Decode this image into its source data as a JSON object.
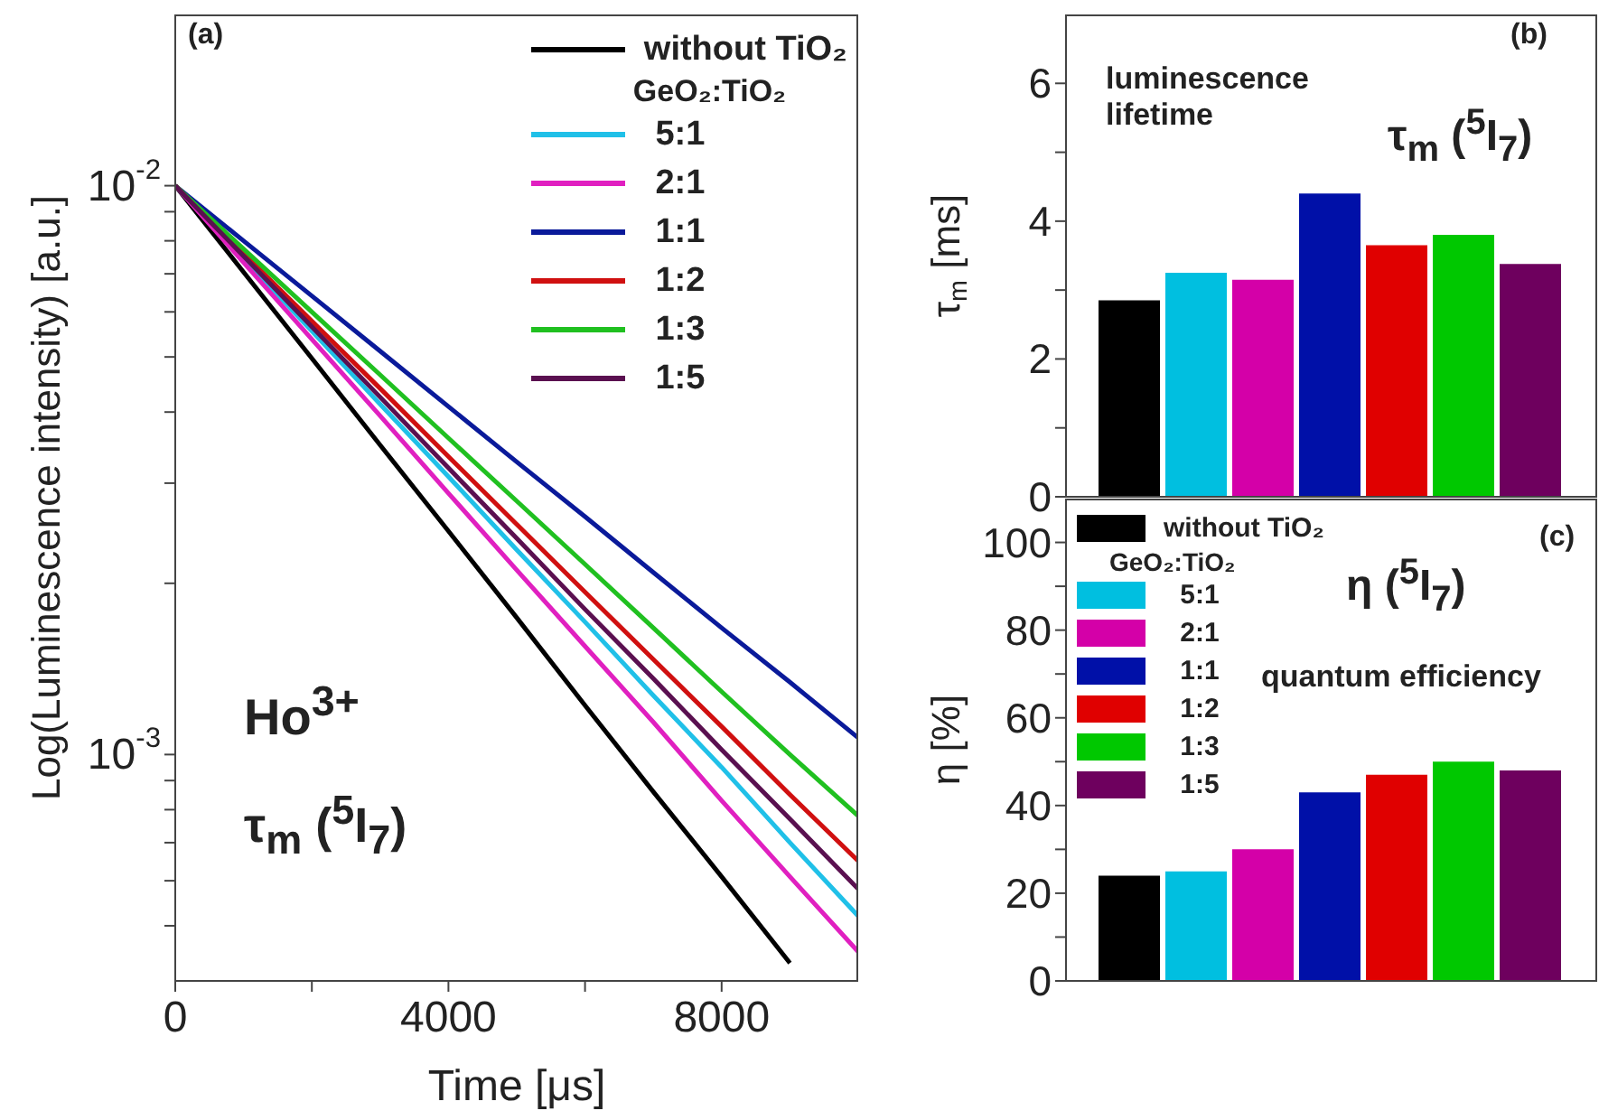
{
  "chart_data": [
    {
      "type": "line",
      "log": "y",
      "xlabel": "Time [μs]",
      "ylabel": "Log(Luminescence intensity) [a.u.]",
      "legend": "top right",
      "legend_title": "GeO₂:TiO₂",
      "annotations": [
        "(a)",
        "Ho$^{3+}$",
        "τ$_{m}$ ($^{5}$I$_{7}$)"
      ],
      "x": [
        0,
        1000,
        2000,
        3000,
        4000,
        5000,
        6000,
        7000,
        8000,
        9000,
        10000
      ],
      "xlim": [
        0,
        10000
      ],
      "xticks": [
        0,
        {
          "value": 2000,
          "label": null
        },
        4000,
        {
          "value": 6000,
          "label": null
        },
        8000
      ],
      "ylim": [
        0.0004,
        0.02
      ],
      "yticks": [
        {
          "value": 0.0005,
          "label": null
        },
        {
          "value": 0.0006,
          "label": null
        },
        {
          "value": 0.0007,
          "label": null
        },
        {
          "value": 0.0008,
          "label": null
        },
        {
          "value": 0.0009,
          "label": null
        },
        {
          "value": 0.001,
          "label": "10$^{-3}$"
        },
        {
          "value": 0.002,
          "label": null
        },
        {
          "value": 0.003,
          "label": null
        },
        {
          "value": 0.004,
          "label": null
        },
        {
          "value": 0.005,
          "label": null
        },
        {
          "value": 0.006,
          "label": null
        },
        {
          "value": 0.007,
          "label": null
        },
        {
          "value": 0.008,
          "label": null
        },
        {
          "value": 0.009,
          "label": null
        },
        {
          "value": 0.01,
          "label": "10$^{-2}$"
        }
      ],
      "series": [
        {
          "name": "without TiO₂",
          "color": "#000000",
          "values": [
            0.01,
            0.00705,
            0.00497,
            0.0035,
            0.00247,
            0.00174,
            0.00122,
            0.00086,
            0.00061,
            0.00043,
            null
          ]
        },
        {
          "name": "5:1",
          "color": "#20c0e8",
          "values": [
            0.01,
            0.00745,
            0.00555,
            0.00413,
            0.00308,
            0.00229,
            0.00171,
            0.00127,
            0.00095,
            0.0007,
            0.00052
          ]
        },
        {
          "name": "2:1",
          "color": "#e020c0",
          "values": [
            0.01,
            0.00733,
            0.00537,
            0.00394,
            0.00288,
            0.00211,
            0.00155,
            0.00114,
            0.00083,
            0.00061,
            0.00045
          ]
        },
        {
          "name": "1:1",
          "color": "#0a1a9a",
          "values": [
            0.01,
            0.008,
            0.0064,
            0.00512,
            0.00409,
            0.00327,
            0.00262,
            0.00209,
            0.00167,
            0.00134,
            0.00107
          ]
        },
        {
          "name": "1:2",
          "color": "#d01010",
          "values": [
            0.01,
            0.0076,
            0.00578,
            0.0044,
            0.00334,
            0.00254,
            0.00193,
            0.00147,
            0.00112,
            0.00085,
            0.00065
          ]
        },
        {
          "name": "1:3",
          "color": "#20c020",
          "values": [
            0.01,
            0.00774,
            0.006,
            0.00465,
            0.0036,
            0.00279,
            0.00216,
            0.00167,
            0.00129,
            0.001,
            0.00078
          ]
        },
        {
          "name": "1:5",
          "color": "#5a1050",
          "values": [
            0.01,
            0.00752,
            0.00565,
            0.00425,
            0.00319,
            0.0024,
            0.0018,
            0.00136,
            0.00102,
            0.00077,
            0.00058
          ]
        }
      ]
    },
    {
      "type": "bar",
      "ylabel": "τ$_{m}$ [ms]",
      "annotations": [
        "(b)",
        "luminescence lifetime",
        "τ$_{m}$ ($^{5}$I$_{7}$)"
      ],
      "categories": [
        null
      ],
      "ylim": [
        0,
        7
      ],
      "yticks": [
        0,
        {
          "value": 1,
          "label": null
        },
        2,
        {
          "value": 3,
          "label": null
        },
        4,
        {
          "value": 5,
          "label": null
        },
        6
      ],
      "series": [
        {
          "color": "#000000",
          "values": [
            2.85
          ]
        },
        {
          "color": "#00bfe0",
          "values": [
            3.25
          ]
        },
        {
          "color": "#d400a8",
          "values": [
            3.15
          ]
        },
        {
          "color": "#0010a8",
          "values": [
            4.4
          ]
        },
        {
          "color": "#e00000",
          "values": [
            3.65
          ]
        },
        {
          "color": "#00c800",
          "values": [
            3.8
          ]
        },
        {
          "color": "#6e005e",
          "values": [
            3.38
          ]
        }
      ]
    },
    {
      "type": "bar",
      "ylabel": "η [%]",
      "legend": "top left",
      "legend_title": "GeO₂:TiO₂",
      "annotations": [
        "(c)",
        "η ($^{5}$I$_{7}$)",
        "quantum efficiency"
      ],
      "categories": [
        null
      ],
      "ylim": [
        0,
        110
      ],
      "yticks": [
        0,
        {
          "value": 10,
          "label": null
        },
        20,
        {
          "value": 30,
          "label": null
        },
        40,
        {
          "value": 50,
          "label": null
        },
        60,
        {
          "value": 70,
          "label": null
        },
        80,
        {
          "value": 90,
          "label": null
        },
        100
      ],
      "series": [
        {
          "name": "without TiO₂",
          "color": "#000000",
          "values": [
            24
          ]
        },
        {
          "name": "5:1",
          "color": "#00bfe0",
          "values": [
            25
          ]
        },
        {
          "name": "2:1",
          "color": "#d400a8",
          "values": [
            30
          ]
        },
        {
          "name": "1:1",
          "color": "#0010a8",
          "values": [
            43
          ]
        },
        {
          "name": "1:2",
          "color": "#e00000",
          "values": [
            47
          ]
        },
        {
          "name": "1:3",
          "color": "#00c800",
          "values": [
            50
          ]
        },
        {
          "name": "1:5",
          "color": "#6e005e",
          "values": [
            48
          ]
        }
      ]
    }
  ]
}
